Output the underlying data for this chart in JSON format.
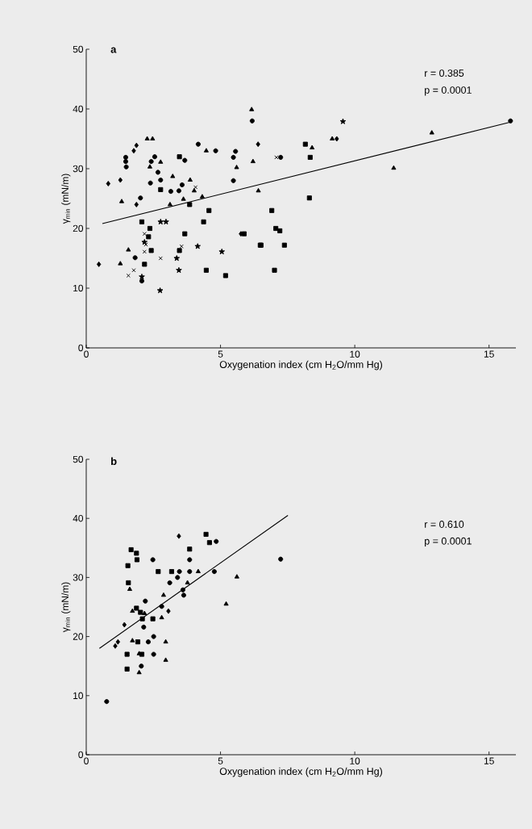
{
  "chart_data": [
    {
      "type": "scatter",
      "title": "a",
      "xlabel": "Oxygenation index (cm H$_{2}$O/mm Hg)",
      "ylabel": "γ$_{min}$ (mN/m)",
      "xlim": [
        0,
        16
      ],
      "ylim": [
        0,
        50
      ],
      "xticks": [
        0,
        5,
        10,
        15
      ],
      "yticks": [
        0,
        10,
        20,
        30,
        40,
        50
      ],
      "annotations": [
        "r = 0.385",
        "p = 0.0001"
      ],
      "series": [
        {
          "marker": "diamond",
          "color": "#000000",
          "x": [
            0.47,
            0.82,
            1.27,
            1.87,
            6.4,
            5.76
          ],
          "values": [
            14.0,
            27.5,
            28.1,
            24.0,
            34.1,
            19.1
          ]
        },
        {
          "marker": "triangle",
          "color": "#000000",
          "x": [
            1.32,
            2.47,
            2.27,
            6.16,
            6.21,
            5.6,
            6.41,
            3.87,
            3.62,
            1.57,
            1.27,
            2.37,
            8.41,
            11.45,
            9.16
          ],
          "values": [
            24.5,
            35.0,
            35.0,
            39.9,
            31.2,
            30.2,
            26.3,
            28.1,
            24.9,
            16.4,
            14.1,
            30.3,
            33.5,
            30.1,
            35.0
          ]
        },
        {
          "marker": "circle",
          "color": "#000000",
          "x": [
            1.47,
            1.47,
            1.49,
            2.55,
            2.42,
            2.39,
            2.77,
            2.02,
            3.15,
            3.45,
            3.57,
            4.17,
            6.18,
            2.07,
            2.67,
            15.8,
            7.24
          ],
          "values": [
            31.9,
            31.2,
            30.3,
            32.0,
            31.2,
            27.6,
            28.1,
            25.1,
            26.2,
            26.3,
            27.3,
            34.1,
            38.0,
            11.2,
            29.4,
            38.0,
            31.9
          ]
        },
        {
          "marker": "square",
          "color": "#000000",
          "x": [
            3.47,
            2.77,
            2.07,
            2.37,
            3.85,
            4.57,
            4.37,
            3.67,
            3.47,
            2.42,
            2.17,
            8.16,
            8.34
          ],
          "values": [
            32.0,
            26.5,
            21.1,
            20.0,
            24.0,
            23.0,
            21.1,
            19.1,
            16.3,
            16.3,
            14.0,
            34.1,
            31.9
          ]
        },
        {
          "marker": "circle",
          "color": "#000000",
          "x": [
            3.67,
            5.56,
            5.48,
            5.48,
            4.82,
            1.82
          ],
          "values": [
            31.4,
            32.9,
            31.9,
            28.0,
            33.0,
            15.1
          ]
        },
        {
          "marker": "triangle",
          "color": "#000000",
          "x": [
            3.22,
            4.47,
            4.32,
            4.02,
            3.12,
            2.77,
            12.87
          ],
          "values": [
            28.7,
            33.0,
            25.3,
            26.3,
            24.0,
            31.1,
            36.0
          ]
        },
        {
          "marker": "diamond",
          "color": "#000000",
          "x": [
            1.77,
            1.87,
            9.33
          ],
          "values": [
            33.0,
            33.9,
            35.0
          ]
        },
        {
          "marker": "square",
          "color": "#000000",
          "x": [
            2.32,
            4.47,
            5.19,
            5.88,
            6.48,
            8.31,
            6.91,
            7.06,
            7.21,
            6.51,
            7.38,
            7.01
          ],
          "values": [
            18.6,
            13.0,
            12.1,
            19.1,
            17.2,
            25.1,
            23.0,
            20.0,
            19.6,
            17.2,
            17.2,
            13.0
          ]
        },
        {
          "marker": "cross",
          "color": "#000000",
          "x": [
            2.17,
            2.17,
            1.57,
            7.08
          ],
          "values": [
            19.1,
            16.1,
            12.1,
            31.9
          ]
        },
        {
          "marker": "cross",
          "color": "#000000",
          "x": [
            2.22,
            2.77,
            1.77,
            3.55,
            4.07
          ],
          "values": [
            17.3,
            15.0,
            13.0,
            17.0,
            26.9
          ]
        },
        {
          "marker": "star",
          "color": "#000000",
          "x": [
            2.77,
            2.97,
            2.07,
            2.75,
            3.37,
            3.45,
            4.15,
            5.05,
            2.17,
            9.56
          ],
          "values": [
            21.1,
            21.1,
            11.9,
            9.6,
            15.0,
            13.0,
            17.0,
            16.1,
            17.7,
            37.9
          ]
        },
        {
          "type": "line",
          "marker": "none",
          "color": "#000000",
          "x": [
            0.6,
            15.8
          ],
          "values": [
            20.8,
            37.8
          ]
        }
      ]
    },
    {
      "type": "scatter",
      "title": "b",
      "xlabel": "Oxygenation index (cm H$_{2}$O/mm Hg)",
      "ylabel": "γ$_{min}$ (mN/m)",
      "xlim": [
        0,
        16
      ],
      "ylim": [
        0,
        50
      ],
      "xticks": [
        0,
        5,
        10,
        15
      ],
      "yticks": [
        0,
        10,
        20,
        30,
        40,
        50
      ],
      "annotations": [
        "r = 0.610",
        "p = 0.0001"
      ],
      "series": [
        {
          "marker": "circle",
          "color": "#000000",
          "x": [
            0.76,
            2.48,
            2.51,
            2.05,
            2.31
          ],
          "values": [
            9.0,
            33.0,
            20.0,
            15.0,
            19.1
          ]
        },
        {
          "marker": "diamond",
          "color": "#000000",
          "x": [
            3.45,
            1.42,
            1.08,
            1.18,
            3.06
          ],
          "values": [
            37.0,
            22.0,
            18.4,
            19.1,
            24.3
          ]
        },
        {
          "marker": "square",
          "color": "#000000",
          "x": [
            4.46,
            4.59,
            3.85,
            2.09,
            2.07,
            1.87
          ],
          "values": [
            37.3,
            35.9,
            34.8,
            23.0,
            17.0,
            24.8
          ]
        },
        {
          "marker": "circle",
          "color": "#000000",
          "x": [
            4.84,
            3.85,
            3.47,
            3.85,
            4.77,
            3.11,
            3.4,
            3.63,
            2.2,
            2.81,
            2.14,
            2.51,
            3.6,
            7.24
          ],
          "values": [
            36.1,
            33.0,
            31.0,
            31.0,
            31.0,
            29.1,
            30.0,
            27.0,
            26.0,
            25.1,
            21.6,
            17.0,
            27.9,
            33.1
          ]
        },
        {
          "marker": "triangle",
          "color": "#000000",
          "x": [
            4.17,
            3.77,
            1.62,
            1.72,
            2.81,
            1.72,
            1.97,
            2.17
          ],
          "values": [
            31.0,
            29.1,
            28.0,
            24.3,
            23.2,
            19.3,
            17.1,
            23.9
          ]
        },
        {
          "marker": "square",
          "color": "#000000",
          "x": [
            1.67,
            1.87,
            1.89,
            1.55,
            2.68,
            3.18,
            1.57,
            2.02,
            2.48,
            1.92,
            1.52,
            1.52
          ],
          "values": [
            34.7,
            34.1,
            33.0,
            32.0,
            31.0,
            31.0,
            29.1,
            24.1,
            23.0,
            19.1,
            17.0,
            14.5
          ]
        },
        {
          "marker": "triangle",
          "color": "#000000",
          "x": [
            2.88,
            2.96,
            2.96,
            5.21,
            5.61,
            1.97
          ],
          "values": [
            27.0,
            19.1,
            16.0,
            25.5,
            30.1,
            13.9
          ]
        },
        {
          "type": "line",
          "marker": "none",
          "color": "#000000",
          "x": [
            0.49,
            7.51
          ],
          "values": [
            18.0,
            40.5
          ]
        }
      ]
    }
  ]
}
